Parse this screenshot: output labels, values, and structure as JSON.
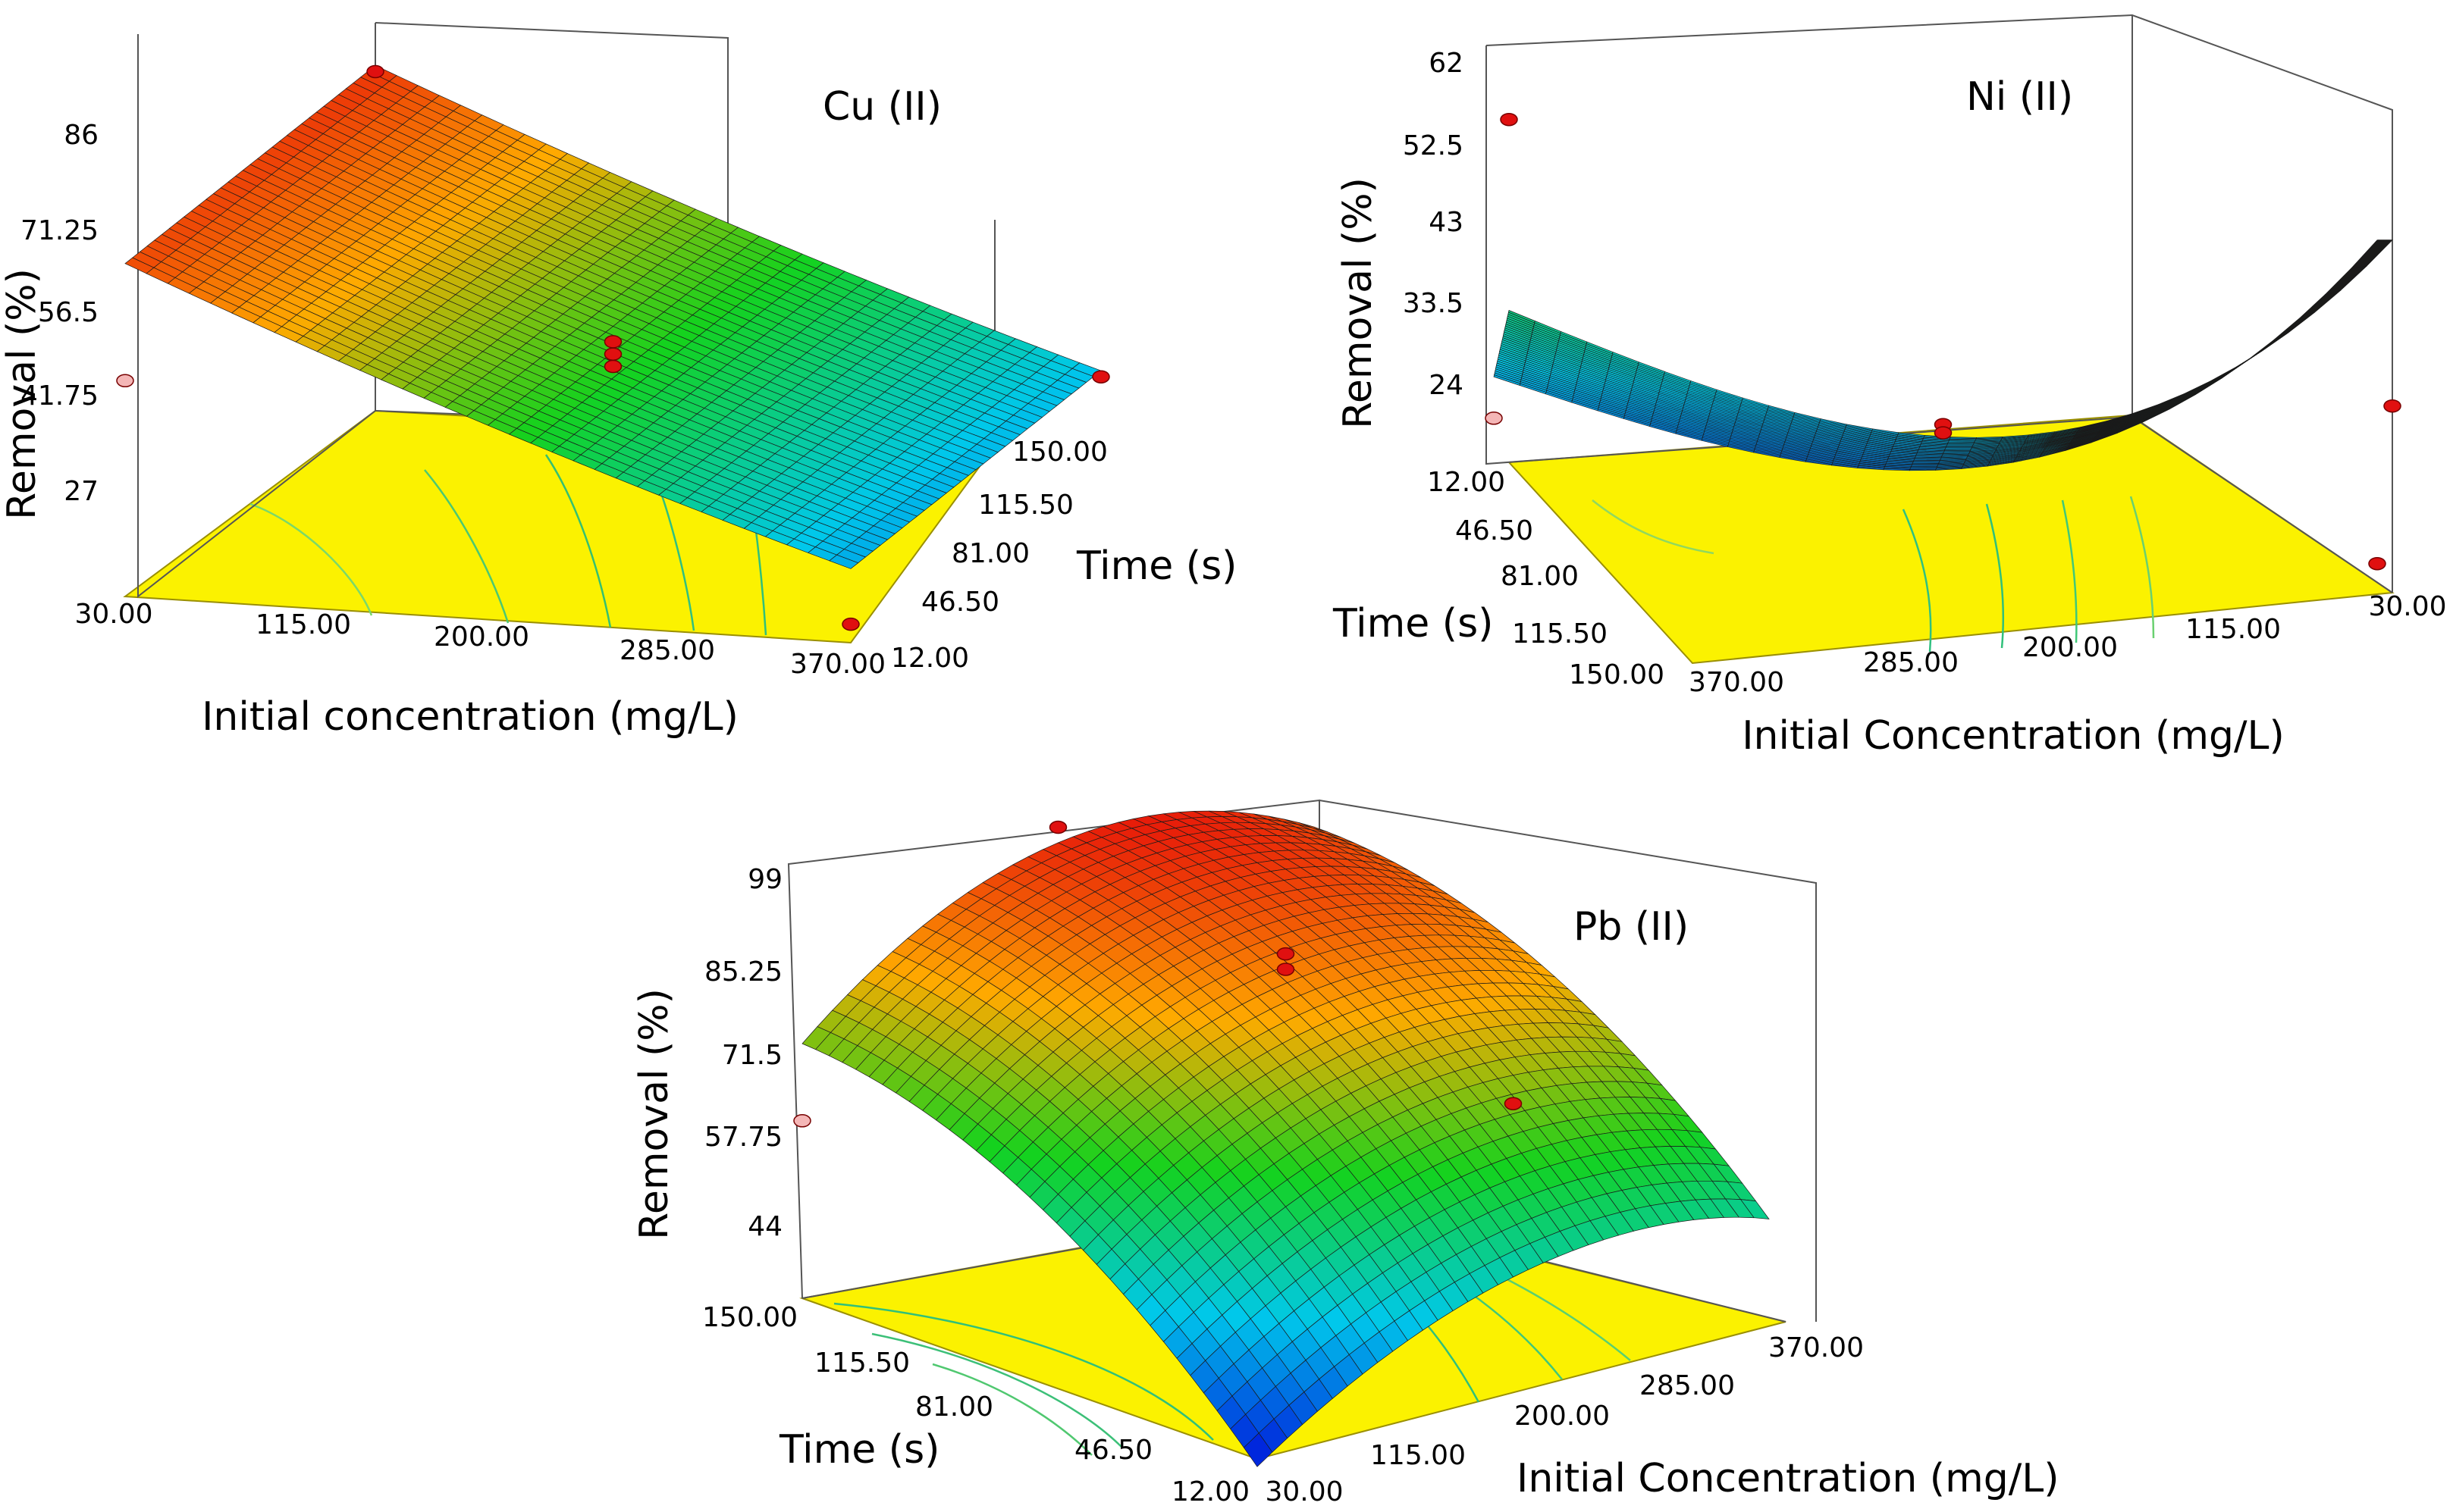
{
  "chart_data": [
    {
      "type": "surface3d",
      "title": "Cu (II)",
      "zlabel": "Removal (%)",
      "xlabel": "Initial concentration (mg/L)",
      "ylabel": "Time (s)",
      "z_ticks": [
        "86",
        "71.25",
        "56.5",
        "41.75",
        "27"
      ],
      "x_ticks": [
        "30.00",
        "115.00",
        "200.00",
        "285.00",
        "370.00"
      ],
      "y_ticks": [
        "150.00",
        "115.50",
        "81.00",
        "46.50",
        "12.00"
      ],
      "zlim": [
        27,
        86
      ],
      "xlim": [
        30,
        370
      ],
      "ylim": [
        12,
        150
      ],
      "design_points": [
        {
          "x": 30,
          "y": 150,
          "z": 82
        },
        {
          "x": 200,
          "y": 81,
          "z": 57
        },
        {
          "x": 200,
          "y": 81,
          "z": 55
        },
        {
          "x": 200,
          "y": 81,
          "z": 53
        },
        {
          "x": 370,
          "y": 150,
          "z": 40
        },
        {
          "x": 370,
          "y": 12,
          "z": 30
        },
        {
          "x": 30,
          "y": 12,
          "z": 62
        }
      ]
    },
    {
      "type": "surface3d",
      "title": "Ni (II)",
      "zlabel": "Removal (%)",
      "xlabel": "Initial Concentration (mg/L)",
      "ylabel": "Time (s)",
      "z_ticks": [
        "62",
        "52.5",
        "43",
        "33.5",
        "24"
      ],
      "x_ticks": [
        "370.00",
        "285.00",
        "200.00",
        "115.00",
        "30.00"
      ],
      "y_ticks": [
        "12.00",
        "46.50",
        "81.00",
        "115.50",
        "150.00"
      ],
      "zlim": [
        14.5,
        62
      ],
      "xlim": [
        30,
        370
      ],
      "ylim": [
        12,
        150
      ],
      "design_points": [
        {
          "x": 30,
          "y": 12,
          "z": 56
        },
        {
          "x": 200,
          "y": 81,
          "z": 27
        },
        {
          "x": 200,
          "y": 81,
          "z": 26
        },
        {
          "x": 370,
          "y": 12,
          "z": 37
        },
        {
          "x": 370,
          "y": 150,
          "z": 18
        },
        {
          "x": 30,
          "y": 150,
          "z": 20
        }
      ]
    },
    {
      "type": "surface3d",
      "title": "Pb (II)",
      "zlabel": "Removal (%)",
      "xlabel": "Initial Concentration (mg/L)",
      "ylabel": "Time (s)",
      "z_ticks": [
        "99",
        "85.25",
        "71.5",
        "57.75",
        "44"
      ],
      "x_ticks": [
        "30.00",
        "115.00",
        "200.00",
        "285.00",
        "370.00"
      ],
      "y_ticks": [
        "150.00",
        "115.50",
        "81.00",
        "46.50",
        "12.00"
      ],
      "zlim": [
        44,
        99
      ],
      "xlim": [
        30,
        370
      ],
      "ylim": [
        12,
        150
      ],
      "design_points": [
        {
          "x": 30,
          "y": 81,
          "z": 99
        },
        {
          "x": 200,
          "y": 81,
          "z": 93
        },
        {
          "x": 200,
          "y": 81,
          "z": 91
        },
        {
          "x": 370,
          "y": 81,
          "z": 84
        },
        {
          "x": 30,
          "y": 12,
          "z": 67
        }
      ]
    }
  ]
}
